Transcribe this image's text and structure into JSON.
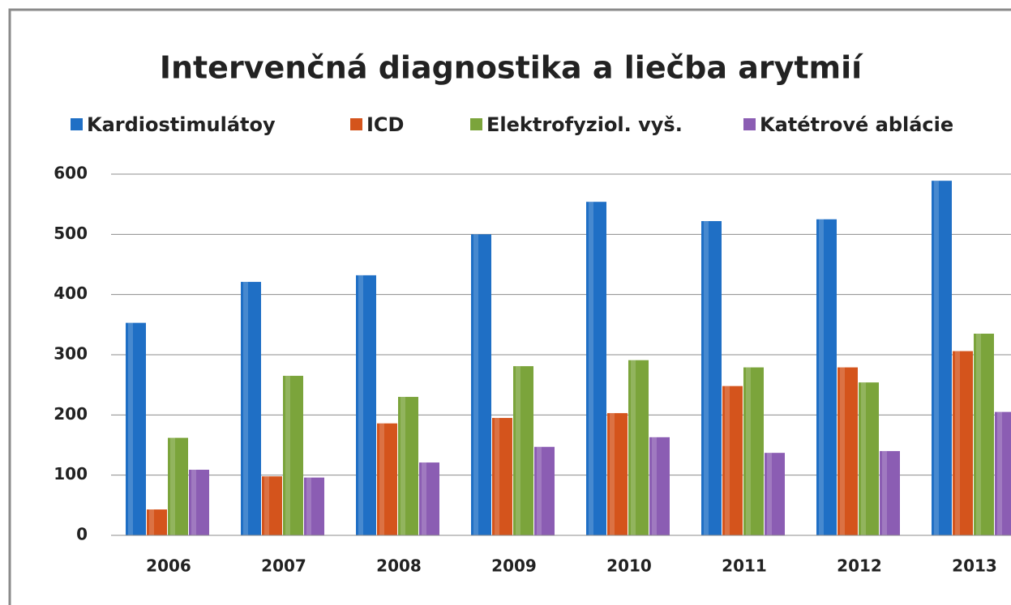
{
  "chart_data": {
    "type": "bar",
    "title": "Intervenčná diagnostika a liečba  arytmií",
    "categories": [
      "2006",
      "2007",
      "2008",
      "2009",
      "2010",
      "2011",
      "2012",
      "2013"
    ],
    "series": [
      {
        "name": "Kardiostimulátoy",
        "color": "#1f6fc5",
        "values": [
          353,
          421,
          432,
          500,
          554,
          522,
          525,
          589
        ]
      },
      {
        "name": "ICD",
        "color": "#d4541c",
        "values": [
          43,
          98,
          186,
          195,
          203,
          248,
          279,
          306
        ]
      },
      {
        "name": "Elektrofyziol. vyš.",
        "color": "#7ba43b",
        "values": [
          162,
          265,
          230,
          281,
          291,
          279,
          254,
          335
        ]
      },
      {
        "name": "Katétrové ablácie",
        "color": "#8b5db3",
        "values": [
          109,
          96,
          121,
          147,
          163,
          137,
          140,
          205
        ]
      }
    ],
    "ylim": [
      0,
      600
    ],
    "yticks": [
      0,
      100,
      200,
      300,
      400,
      500,
      600
    ],
    "grid": true,
    "legend": "top"
  }
}
